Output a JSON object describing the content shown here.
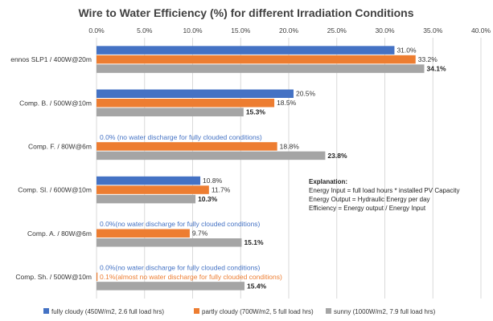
{
  "chart_data": {
    "type": "bar",
    "orientation": "horizontal",
    "title": "Wire to Water Efficiency (%) for different Irradiation Conditions",
    "xlim": [
      0,
      40
    ],
    "x_ticks": [
      "0.0%",
      "5.0%",
      "10.0%",
      "15.0%",
      "20.0%",
      "25.0%",
      "30.0%",
      "35.0%",
      "40.0%"
    ],
    "x_tick_values": [
      0,
      5,
      10,
      15,
      20,
      25,
      30,
      35,
      40
    ],
    "grid": true,
    "legend_position": "bottom",
    "categories": [
      "ennos SLP1 / 400W@20m",
      "Comp. B. / 500W@10m",
      "Comp. F. / 80W@6m",
      "Comp. Sl. / 600W@10m",
      "Comp. A. / 80W@6m",
      "Comp. Sh. / 500W@10m"
    ],
    "series": [
      {
        "name": "fully cloudy (450W/m2, 2.6 full load hrs)",
        "color": "#4472C4",
        "values": [
          31.0,
          20.5,
          0.0,
          10.8,
          0.0,
          0.0
        ],
        "labels": [
          "31.0%",
          "20.5%",
          "",
          "10.8%",
          "",
          ""
        ]
      },
      {
        "name": "partly cloudy (700W/m2, 5 full load hrs)",
        "color": "#ED7D31",
        "values": [
          33.2,
          18.5,
          18.8,
          11.7,
          9.7,
          0.1
        ],
        "labels": [
          "33.2%",
          "18.5%",
          "18.8%",
          "11.7%",
          "9.7%",
          ""
        ]
      },
      {
        "name": "sunny (1000W/m2, 7.9 full load hrs)",
        "color": "#A5A5A5",
        "values": [
          34.1,
          15.3,
          23.8,
          10.3,
          15.1,
          15.4
        ],
        "labels": [
          "34.1%",
          "15.3%",
          "23.8%",
          "10.3%",
          "15.1%",
          "15.4%"
        ]
      }
    ],
    "annotations": [
      {
        "category": "Comp. F. / 80W@6m",
        "series": "fully cloudy (450W/m2, 2.6 full load hrs)",
        "text": "0.0% (no water discharge for fully clouded conditions)",
        "color": "#4472C4"
      },
      {
        "category": "Comp. A. / 80W@6m",
        "series": "fully cloudy (450W/m2, 2.6 full load hrs)",
        "text": "0.0%(no water discharge for fully clouded conditions)",
        "color": "#4472C4"
      },
      {
        "category": "Comp. Sh. / 500W@10m",
        "series": "fully cloudy (450W/m2, 2.6 full load hrs)",
        "text": "0.0%(no water discharge for fully clouded conditions)",
        "color": "#4472C4"
      },
      {
        "category": "Comp. Sh. / 500W@10m",
        "series": "partly cloudy (700W/m2, 5 full load hrs)",
        "text": "0.1%(almost no water discharge for fully clouded conditions)",
        "color": "#ED7D31"
      }
    ],
    "explanation": {
      "heading": "Explanation:",
      "lines": [
        "Energy Input = full load hours * installed PV Capacity",
        "Energy Output = Hydraulic Energy per day",
        "Efficiency = Energy output / Energy Input"
      ]
    }
  }
}
